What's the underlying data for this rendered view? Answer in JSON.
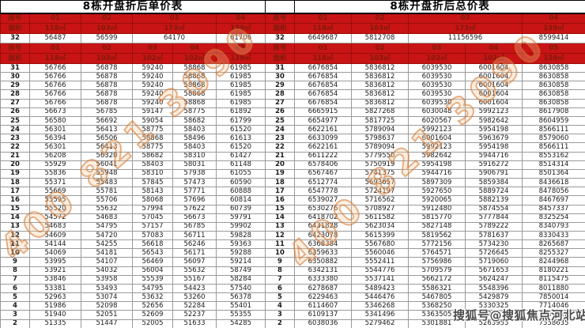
{
  "corner_labels": {
    "room": "房号",
    "area": "面积"
  },
  "floors": [
    "31",
    "30",
    "29",
    "28",
    "27",
    "26",
    "25",
    "24",
    "23",
    "22",
    "21",
    "20",
    "19",
    "18",
    "17",
    "16",
    "15",
    "14",
    "13",
    "12",
    "11",
    "10",
    "9",
    "8",
    "7",
    "6",
    "5",
    "4",
    "3",
    "2"
  ],
  "left_table": {
    "title": "8栋开盘折后单价表",
    "floor32_header": {
      "units": [
        "01",
        "02",
        "03",
        "04"
      ],
      "areas": [
        "118㎡",
        "103㎡",
        "173㎡",
        "139㎡"
      ]
    },
    "floor32_row": {
      "floor": "32",
      "values": [
        "56487",
        "56599",
        "64170",
        "61706"
      ]
    },
    "main_header": {
      "units": [
        "01",
        "02",
        "03",
        "04",
        "05"
      ],
      "areas": [
        "118㎡",
        "103㎡",
        "102㎡",
        "102㎡",
        "139㎡"
      ]
    },
    "rows": [
      [
        "56766",
        "56878",
        "59240",
        "58868",
        "61985"
      ],
      [
        "56766",
        "56878",
        "59240",
        "58868",
        "61985"
      ],
      [
        "56766",
        "56878",
        "59240",
        "58868",
        "61985"
      ],
      [
        "56766",
        "56878",
        "59240",
        "58868",
        "61985"
      ],
      [
        "56766",
        "56878",
        "59240",
        "58868",
        "61985"
      ],
      [
        "56673",
        "56785",
        "59147",
        "58775",
        "61892"
      ],
      [
        "56580",
        "56692",
        "59054",
        "58682",
        "61799"
      ],
      [
        "56301",
        "56413",
        "58775",
        "58403",
        "61520"
      ],
      [
        "56394",
        "56506",
        "58868",
        "58496",
        "61613"
      ],
      [
        "56301",
        "56413",
        "58775",
        "58403",
        "61520"
      ],
      [
        "56208",
        "56320",
        "58682",
        "58310",
        "61427"
      ],
      [
        "55929",
        "56041",
        "58403",
        "58031",
        "61148"
      ],
      [
        "55836",
        "55948",
        "58310",
        "57938",
        "61055"
      ],
      [
        "55371",
        "55483",
        "57845",
        "57473",
        "60590"
      ],
      [
        "55669",
        "55781",
        "58143",
        "57771",
        "60888"
      ],
      [
        "55595",
        "55706",
        "58068",
        "57696",
        "60814"
      ],
      [
        "55520",
        "55632",
        "57994",
        "57622",
        "60739"
      ],
      [
        "54572",
        "54683",
        "57045",
        "56673",
        "59791"
      ],
      [
        "54683",
        "54795",
        "57157",
        "56785",
        "59902"
      ],
      [
        "54609",
        "54720",
        "57083",
        "56711",
        "59828"
      ],
      [
        "54144",
        "54255",
        "56618",
        "56246",
        "59363"
      ],
      [
        "54069",
        "54181",
        "56543",
        "56171",
        "59288"
      ],
      [
        "53995",
        "54107",
        "56469",
        "56097",
        "59214"
      ],
      [
        "53921",
        "54032",
        "56004",
        "55632",
        "58749"
      ],
      [
        "53846",
        "53958",
        "55539",
        "55167",
        "58284"
      ],
      [
        "53381",
        "53493",
        "54795",
        "54423",
        "57540"
      ],
      [
        "52963",
        "53074",
        "53632",
        "53260",
        "56378"
      ],
      [
        "51986",
        "52098",
        "52656",
        "52284",
        "55401"
      ],
      [
        "51940",
        "52051",
        "52609",
        "52237",
        "55355"
      ],
      [
        "51335",
        "51447",
        "52005",
        "51633",
        "54285"
      ]
    ]
  },
  "right_table": {
    "title": "8栋开盘折后总价表",
    "floor32_header": {
      "units": [
        "01",
        "02",
        "03",
        "04"
      ],
      "areas": [
        "118㎡",
        "103㎡",
        "173㎡",
        "139㎡"
      ]
    },
    "floor32_row": {
      "floor": "32",
      "values": [
        "6649687",
        "5812708",
        "11156596",
        "8599414"
      ]
    },
    "main_header": {
      "units": [
        "01",
        "02",
        "03",
        "04",
        "05"
      ],
      "areas": [
        "118㎡",
        "103㎡",
        "102㎡",
        "102㎡",
        "139㎡"
      ]
    },
    "rows": [
      [
        "6676854",
        "5836812",
        "6039530",
        "6001604",
        "8630858"
      ],
      [
        "6676854",
        "5836812",
        "6039530",
        "6001604",
        "8630858"
      ],
      [
        "6676854",
        "5836812",
        "6039530",
        "6001604",
        "8630858"
      ],
      [
        "6676854",
        "5836812",
        "6039530",
        "6001604",
        "8630858"
      ],
      [
        "6676854",
        "5836812",
        "6039530",
        "6001604",
        "8630858"
      ],
      [
        "6665915",
        "5827268",
        "6030048",
        "5992123",
        "8617908"
      ],
      [
        "6654977",
        "5817725",
        "6020567",
        "5982642",
        "8604959"
      ],
      [
        "6622161",
        "5789094",
        "5992123",
        "5954198",
        "8566111"
      ],
      [
        "6633099",
        "5798637",
        "6001604",
        "5963679",
        "8579060"
      ],
      [
        "6622161",
        "5789094",
        "5992123",
        "5954198",
        "8566111"
      ],
      [
        "6611222",
        "5779550",
        "5982642",
        "5944716",
        "8553162"
      ],
      [
        "6578406",
        "5750919",
        "5954198",
        "5916272",
        "8514314"
      ],
      [
        "6567467",
        "5741375",
        "5944716",
        "5906791",
        "8501364"
      ],
      [
        "6512774",
        "5693657",
        "5897309",
        "5859384",
        "8436618"
      ],
      [
        "6547778",
        "5724197",
        "5927650",
        "5889724",
        "8478056"
      ],
      [
        "6539027",
        "5716562",
        "5920065",
        "5882139",
        "8467697"
      ],
      [
        "6530276",
        "5708927",
        "5912480",
        "5874554",
        "8457337"
      ],
      [
        "6418702",
        "5611582",
        "5815770",
        "5777844",
        "8325254"
      ],
      [
        "6431828",
        "5623034",
        "5827148",
        "5789222",
        "8340793"
      ],
      [
        "6423078",
        "5615399",
        "5819562",
        "5781637",
        "8330433"
      ],
      [
        "6368384",
        "5567680",
        "5772156",
        "5734230",
        "8265687"
      ],
      [
        "6359633",
        "5560046",
        "5764571",
        "5726645",
        "8255327"
      ],
      [
        "6350882",
        "5552411",
        "5756986",
        "5719060",
        "8244968"
      ],
      [
        "6342131",
        "5544776",
        "5709579",
        "5671653",
        "8180221"
      ],
      [
        "6333380",
        "5537141",
        "5662172",
        "5624247",
        "8115475"
      ],
      [
        "6278687",
        "5489423",
        "5586321",
        "5548396",
        "8011880"
      ],
      [
        "6229463",
        "5446476",
        "5467805",
        "5429879",
        "7850014"
      ],
      [
        "6114607",
        "5346268",
        "5368250",
        "5330325",
        "7714046"
      ],
      [
        "6109137",
        "5341496",
        "5363505",
        "5325531",
        "7707622"
      ],
      [
        "6038036",
        "5279462",
        "5301881",
        "5263955",
        "7558635"
      ]
    ]
  },
  "watermarks": {
    "phone": "400 821 3090",
    "sohu": "搜狐号@搜狐焦点河北站"
  }
}
